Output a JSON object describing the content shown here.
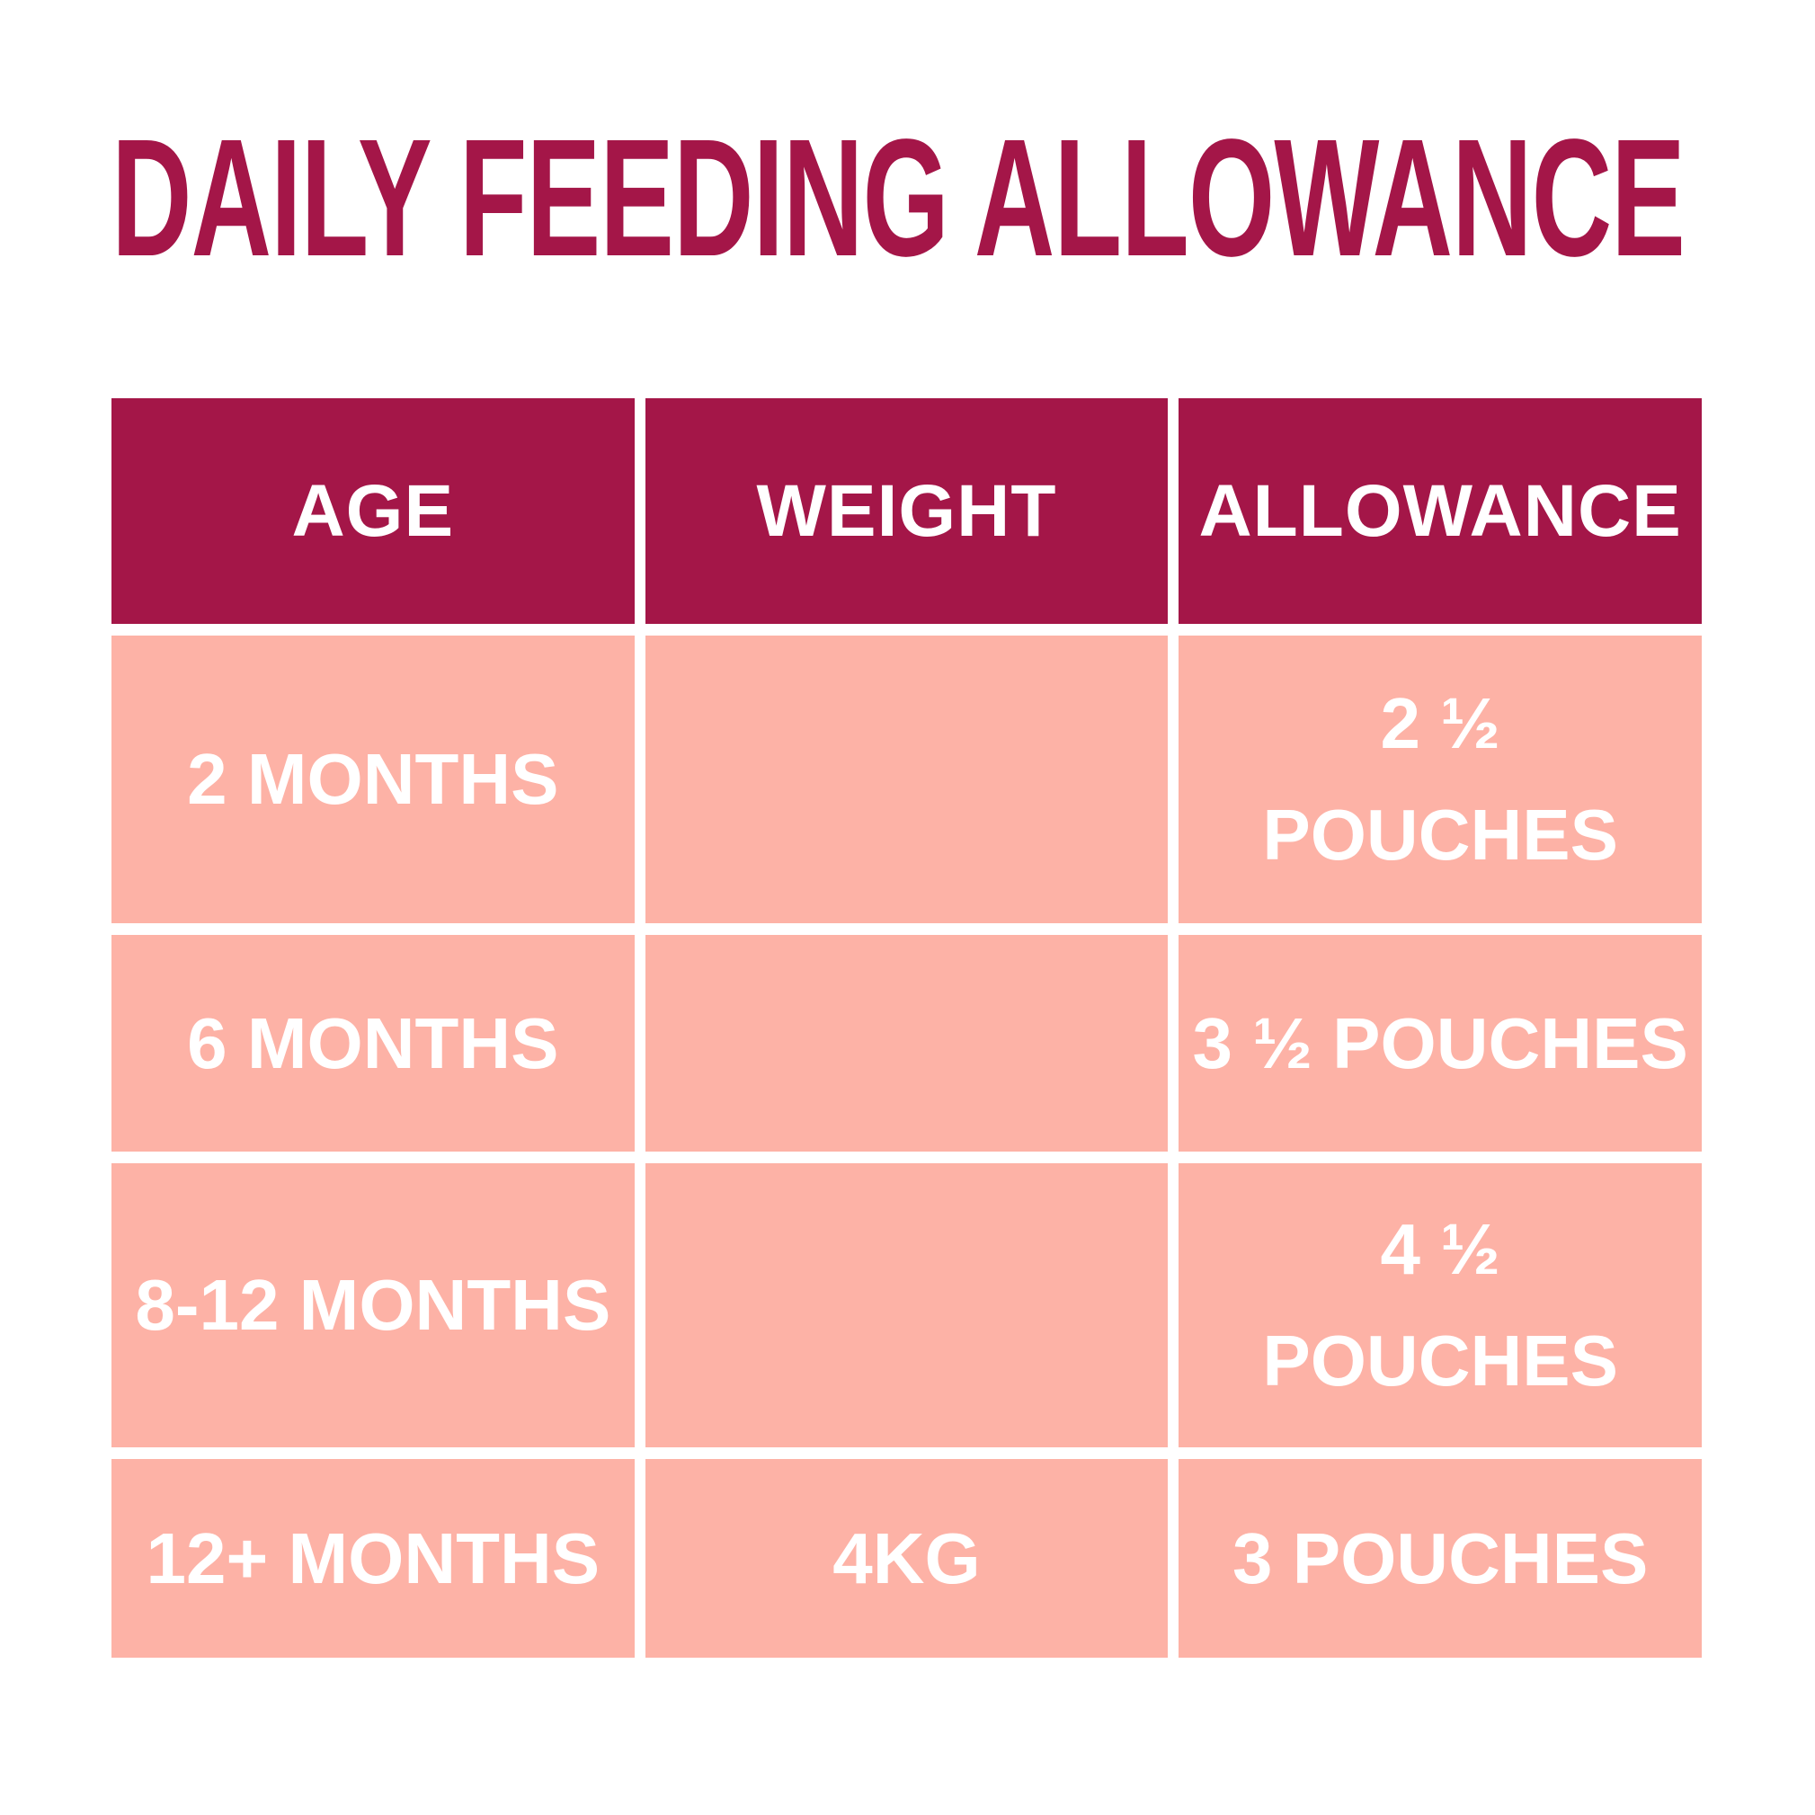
{
  "title": "DAILY FEEDING ALLOWANCE",
  "colors": {
    "accent_dark_red": "#A41648",
    "row_pink": "#FDB2A6",
    "text_on_cells": "#FFFFFF",
    "page_background": "#FFFFFF"
  },
  "table": {
    "headers": [
      "AGE",
      "WEIGHT",
      "ALLOWANCE"
    ],
    "rows": [
      {
        "age": "2 MONTHS",
        "weight": "",
        "allowance": "2 ½\nPOUCHES"
      },
      {
        "age": "6 MONTHS",
        "weight": "",
        "allowance": "3 ½ POUCHES"
      },
      {
        "age": "8-12 MONTHS",
        "weight": "",
        "allowance": "4 ½\nPOUCHES"
      },
      {
        "age": "12+ MONTHS",
        "weight": "4KG",
        "allowance": "3 POUCHES"
      }
    ]
  },
  "chart_data": {
    "type": "table",
    "title": "DAILY FEEDING ALLOWANCE",
    "columns": [
      "AGE",
      "WEIGHT",
      "ALLOWANCE"
    ],
    "rows": [
      [
        "2 MONTHS",
        "",
        "2 ½ POUCHES"
      ],
      [
        "6 MONTHS",
        "",
        "3 ½ POUCHES"
      ],
      [
        "8-12 MONTHS",
        "",
        "4 ½ POUCHES"
      ],
      [
        "12+ MONTHS",
        "4KG",
        "3 POUCHES"
      ]
    ],
    "values_pouches": [
      2.5,
      3.5,
      4.5,
      3
    ],
    "weight_kg": [
      null,
      null,
      null,
      4
    ]
  }
}
